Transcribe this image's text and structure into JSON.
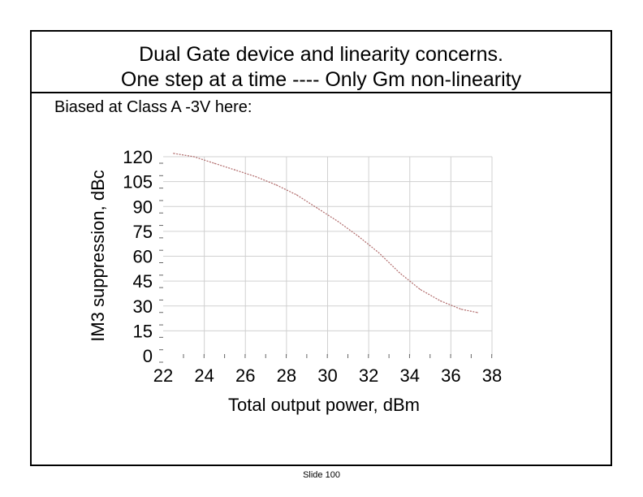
{
  "slide": {
    "title_line1": "Dual Gate device and linearity concerns.",
    "title_line2": "One step at a time ----   Only Gm non-linearity",
    "subtitle": "Biased at Class A -3V here:",
    "footer": "Slide 100"
  },
  "chart_data": {
    "type": "line",
    "title": "",
    "xlabel": "Total output power, dBm",
    "ylabel": "IM3 suppression, dBc",
    "xlim": [
      22,
      38
    ],
    "ylim": [
      0,
      120
    ],
    "x_ticks": [
      22,
      24,
      26,
      28,
      30,
      32,
      34,
      36,
      38
    ],
    "y_ticks": [
      0,
      15,
      30,
      45,
      60,
      75,
      90,
      105,
      120
    ],
    "grid": true,
    "legend": "none",
    "series": [
      {
        "color": "#b06a6a",
        "x": [
          22.5,
          23.5,
          24.5,
          25.5,
          26.5,
          27.5,
          28.5,
          29.5,
          30.5,
          31.5,
          32.5,
          33.5,
          34.5,
          35.5,
          36.5,
          37.3
        ],
        "y": [
          122,
          120,
          116,
          112,
          108,
          103,
          97,
          89,
          81,
          72,
          62,
          50,
          40,
          33,
          28,
          26
        ]
      }
    ]
  }
}
